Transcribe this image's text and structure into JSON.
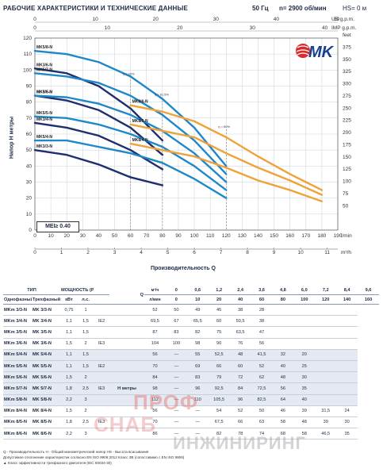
{
  "header": {
    "title": "РАБОЧИЕ ХАРАКТЕРИСТИКИ И ТЕХНИЧЕСКИЕ ДАННЫЕ",
    "freq": "50 Гц",
    "speed": "n= 2900 об/мин",
    "hs": "HS= 0 м"
  },
  "brand": {
    "logo_text": "MK",
    "color": "#1b3f8f",
    "accent": "#d92b2b"
  },
  "chart_data": {
    "type": "line",
    "ylabel": "Напор H метры",
    "xlabel": "Производительность Q",
    "mei": "MEI≥ 0.40",
    "ylim": [
      0,
      120
    ],
    "xlim": [
      0,
      190
    ],
    "y_ticks": [
      "0",
      "10",
      "20",
      "30",
      "40",
      "50",
      "60",
      "70",
      "80",
      "90",
      "100",
      "110",
      "120"
    ],
    "x_ticks": [
      "0",
      "10",
      "20",
      "30",
      "40",
      "50",
      "60",
      "70",
      "80",
      "90",
      "100",
      "110",
      "120",
      "130",
      "140",
      "150",
      "160",
      "170",
      "180",
      "190"
    ],
    "x_unit": "l/min",
    "top_gpm_ticks": [
      "0",
      "10",
      "20",
      "30",
      "40",
      "50"
    ],
    "top_gpm_unit": "US g.p.m.",
    "top_imp_ticks": [
      "0",
      "10",
      "20",
      "30",
      "40"
    ],
    "top_imp_unit": "IMP g.p.m.",
    "m3h_ticks": [
      "0",
      "1",
      "2",
      "3",
      "4",
      "5",
      "6",
      "7",
      "8",
      "9",
      "10",
      "11"
    ],
    "m3h_unit": "m³/h",
    "feet_ticks": [
      "50",
      "75",
      "100",
      "125",
      "150",
      "175",
      "200",
      "225",
      "250",
      "275",
      "300",
      "325",
      "350",
      "375"
    ],
    "feet_unit": "feet",
    "efficiency_labels": [
      "η = 33%",
      "η = 61.5%",
      "η = 60%"
    ],
    "series": [
      {
        "name": "MK3/3-N",
        "color": "#1f2f6e",
        "x": [
          0,
          20,
          40,
          60,
          80
        ],
        "y": [
          50,
          47,
          41,
          33,
          28
        ]
      },
      {
        "name": "MK3/4-N",
        "color": "#1f2f6e",
        "x": [
          0,
          20,
          40,
          60,
          80
        ],
        "y": [
          67,
          64,
          59,
          50,
          38
        ]
      },
      {
        "name": "MK3/5-N",
        "color": "#1f2f6e",
        "x": [
          0,
          20,
          40,
          60,
          80
        ],
        "y": [
          84,
          81,
          75,
          64,
          47
        ]
      },
      {
        "name": "MK3/6-N",
        "color": "#1f2f6e",
        "x": [
          0,
          20,
          40,
          60,
          80
        ],
        "y": [
          101,
          98,
          90,
          76,
          56
        ]
      },
      {
        "name": "MK5/4-N",
        "color": "#1f88c8",
        "x": [
          0,
          20,
          40,
          60,
          80,
          100,
          120
        ],
        "y": [
          56,
          56,
          52,
          48,
          42,
          32,
          20
        ]
      },
      {
        "name": "MK5/5-N",
        "color": "#1f88c8",
        "x": [
          0,
          20,
          40,
          60,
          80,
          100,
          120
        ],
        "y": [
          71,
          70,
          66,
          60,
          52,
          40,
          25
        ]
      },
      {
        "name": "MK5/6-N",
        "color": "#1f88c8",
        "x": [
          0,
          20,
          40,
          60,
          80,
          100,
          120
        ],
        "y": [
          84,
          83,
          79,
          72,
          62,
          48,
          30
        ]
      },
      {
        "name": "MK5/7-N",
        "color": "#1f88c8",
        "x": [
          0,
          20,
          40,
          60,
          80,
          100,
          120
        ],
        "y": [
          98,
          96,
          92,
          84,
          72,
          56,
          35
        ]
      },
      {
        "name": "MK5/8-N",
        "color": "#1f88c8",
        "x": [
          0,
          20,
          40,
          60,
          80,
          100,
          120
        ],
        "y": [
          112,
          110,
          105,
          96,
          82,
          64,
          40
        ]
      },
      {
        "name": "MK8/4-N",
        "color": "#f0a23a",
        "x": [
          60,
          80,
          100,
          120,
          140,
          160,
          180
        ],
        "y": [
          54,
          50,
          46,
          39,
          31,
          25,
          18
        ]
      },
      {
        "name": "MK8/5-N",
        "color": "#f0a23a",
        "x": [
          60,
          80,
          100,
          120,
          140,
          160,
          180
        ],
        "y": [
          66,
          62,
          58,
          48,
          39,
          31,
          22
        ]
      },
      {
        "name": "MK8/6-N",
        "color": "#f0a23a",
        "x": [
          60,
          80,
          100,
          120,
          140,
          160,
          180
        ],
        "y": [
          78,
          74,
          68,
          58,
          46,
          35,
          25
        ]
      }
    ]
  },
  "table": {
    "h_type": "ТИП",
    "h_power": "МОЩНОСТЬ (P2)",
    "h_q": "Q",
    "h_m3h": "м³/ч",
    "h_lmin": "л/мин",
    "h_single": "Однофазный",
    "h_three": "Трехфазный",
    "h_kw": "кВт",
    "h_hp": "л.с.",
    "h_head": "H метры",
    "q_m3h": [
      "0",
      "0,6",
      "1,2",
      "2,4",
      "3,6",
      "4,8",
      "6,0",
      "7,2",
      "8,4",
      "9,6",
      "10,8"
    ],
    "q_lmin": [
      "0",
      "10",
      "20",
      "40",
      "60",
      "80",
      "100",
      "120",
      "140",
      "160",
      "180"
    ],
    "rows": [
      {
        "s": "MKm 3/3-N",
        "t": "MK 3/3-N",
        "kw": "0,75",
        "hp": "1",
        "ie": "",
        "v": [
          "52",
          "50",
          "49",
          "45",
          "38",
          "28",
          "",
          "",
          "",
          "",
          ""
        ]
      },
      {
        "s": "MKm 3/4-N",
        "t": "MK 3/4-N",
        "kw": "1,1",
        "hp": "1,5",
        "ie": "IE2",
        "v": [
          "69,5",
          "67",
          "65,5",
          "60",
          "50,5",
          "38",
          "",
          "",
          "",
          "",
          ""
        ]
      },
      {
        "s": "MKm 3/5-N",
        "t": "MK 3/5-N",
        "kw": "1,1",
        "hp": "1,5",
        "ie": "",
        "v": [
          "87",
          "83",
          "82",
          "75",
          "63,5",
          "47",
          "",
          "",
          "",
          "",
          ""
        ]
      },
      {
        "s": "MKm 3/6-N",
        "t": "MK 3/6-N",
        "kw": "1,5",
        "hp": "2",
        "ie": "IE3",
        "v": [
          "104",
          "100",
          "98",
          "90",
          "76",
          "56",
          "",
          "",
          "",
          "",
          ""
        ]
      },
      {
        "s": "MKm 5/4-N",
        "t": "MK 5/4-N",
        "kw": "1,1",
        "hp": "1,5",
        "ie": "",
        "v": [
          "56",
          "—",
          "55",
          "52,5",
          "48",
          "41,5",
          "32",
          "20",
          "",
          "",
          ""
        ]
      },
      {
        "s": "MKm 5/5-N",
        "t": "MK 5/5-N",
        "kw": "1,1",
        "hp": "1,5",
        "ie": "IE2",
        "v": [
          "70",
          "—",
          "69",
          "66",
          "60",
          "52",
          "40",
          "25",
          "",
          "",
          ""
        ]
      },
      {
        "s": "MKm 5/6-N",
        "t": "MK 5/6-N",
        "kw": "1,5",
        "hp": "2",
        "ie": "",
        "v": [
          "84",
          "—",
          "83",
          "79",
          "72",
          "62",
          "48",
          "30",
          "",
          "",
          ""
        ]
      },
      {
        "s": "MKm 5/7-N",
        "t": "MK 5/7-N",
        "kw": "1,8",
        "hp": "2,5",
        "ie": "IE3",
        "v": [
          "98",
          "—",
          "96",
          "92,5",
          "84",
          "72,5",
          "56",
          "35",
          "",
          "",
          ""
        ]
      },
      {
        "s": "MKm 5/8-N",
        "t": "MK 5/8-N",
        "kw": "2,2",
        "hp": "3",
        "ie": "",
        "v": [
          "112",
          "—",
          "110",
          "105,5",
          "96",
          "82,5",
          "64",
          "40",
          "",
          "",
          ""
        ]
      },
      {
        "s": "MKm 8/4-N",
        "t": "MK 8/4-N",
        "kw": "1,5",
        "hp": "2",
        "ie": "",
        "v": [
          "56",
          "—",
          "—",
          "54",
          "52",
          "50",
          "46",
          "39",
          "31,5",
          "24",
          "15"
        ]
      },
      {
        "s": "MKm 8/5-N",
        "t": "MK 8/5-N",
        "kw": "1,8",
        "hp": "2,5",
        "ie": "IE3",
        "v": [
          "70",
          "—",
          "—",
          "67,5",
          "66",
          "63",
          "58",
          "48",
          "39",
          "30",
          "19"
        ]
      },
      {
        "s": "MKm 8/6-N",
        "t": "MK 8/6-N",
        "kw": "2,2",
        "hp": "3",
        "ie": "",
        "v": [
          "86",
          "—",
          "—",
          "82",
          "78",
          "74",
          "68",
          "58",
          "46,5",
          "35",
          "20"
        ]
      }
    ]
  },
  "notes": {
    "line1": "Q - Производительность   H - Общий манометрический напор   HS - Высота всасывания",
    "line2": "Допустимое отклонение характеристик согласно EN ISO 9906:2012 Класс 3В (сопоставимо с EN ISO 9906)",
    "line3": "▲ Класс эффективности трехфазного двигателя (IEC 60034-30)"
  },
  "watermark": {
    "line1": "ПРОФ",
    "line2": "СНАБ",
    "line3": "ИНЖИНИРИНГ"
  }
}
